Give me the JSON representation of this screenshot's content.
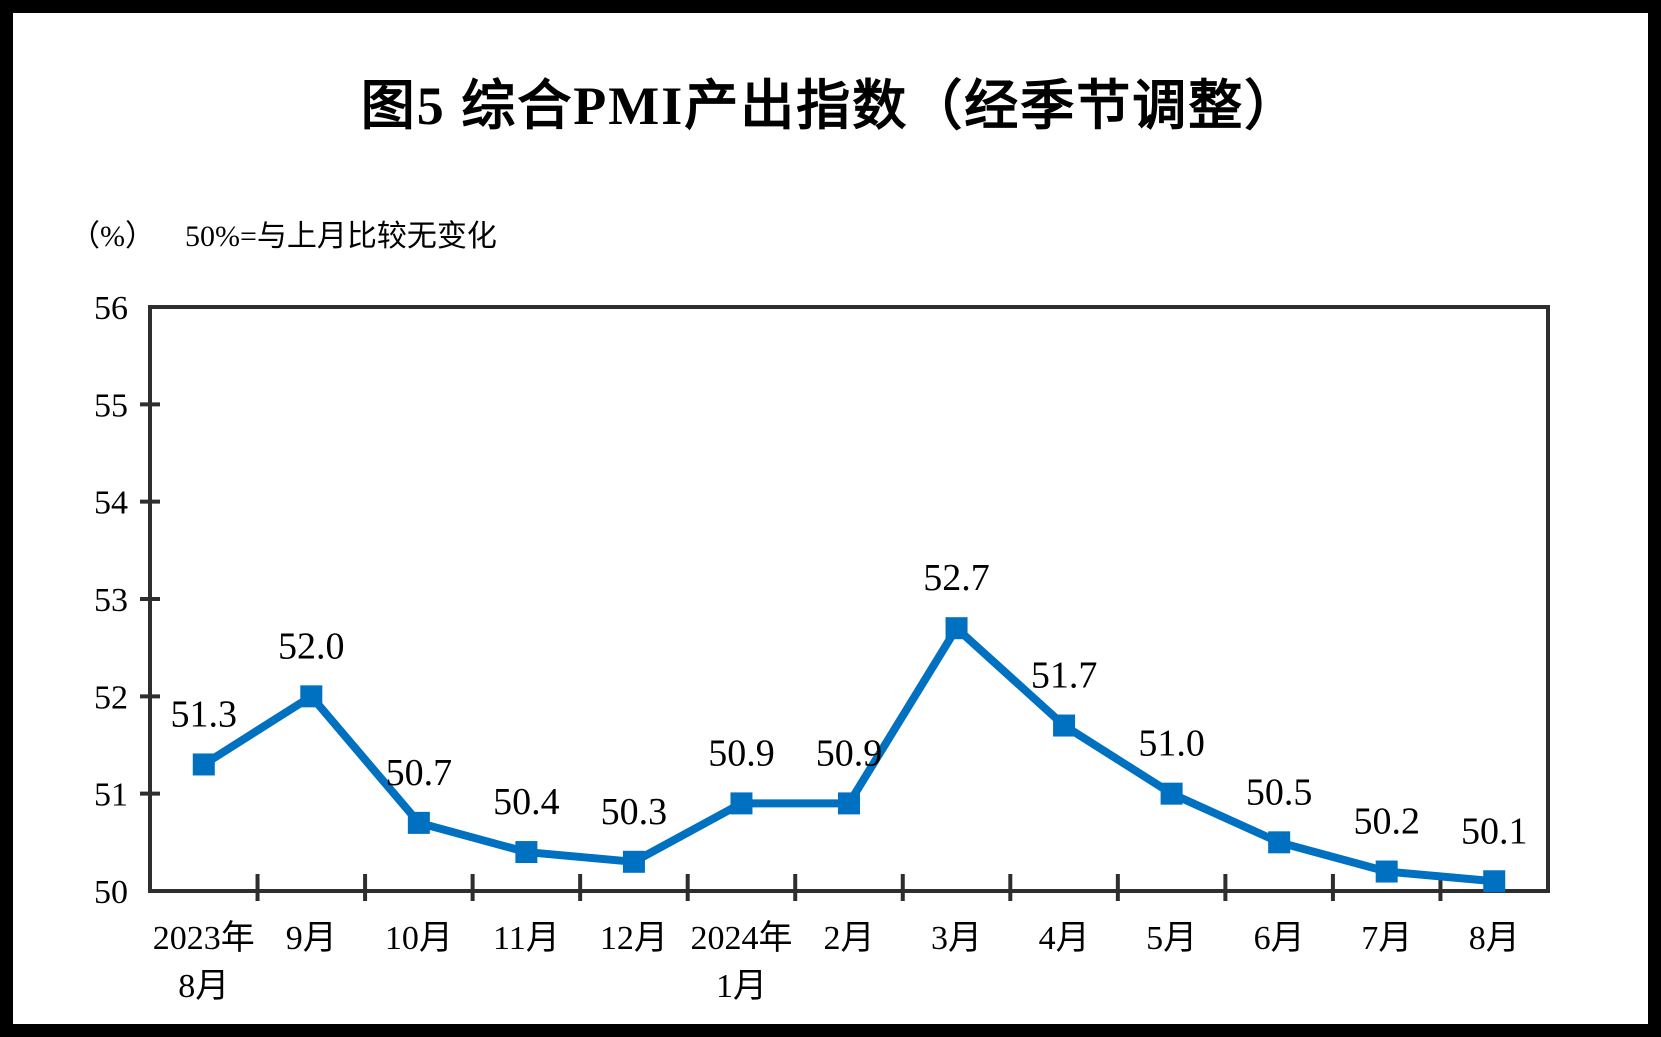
{
  "title": "图5 综合PMI产出指数（经季节调整）",
  "axis_note": {
    "unit": "（%）",
    "note": "50%=与上月比较无变化"
  },
  "chart_data": {
    "type": "line",
    "title": "图5 综合PMI产出指数（经季节调整）",
    "subtitle": "（%） 50%=与上月比较无变化",
    "categories_line1": [
      "2023年",
      "9月",
      "10月",
      "11月",
      "12月",
      "2024年",
      "2月",
      "3月",
      "4月",
      "5月",
      "6月",
      "7月",
      "8月"
    ],
    "categories_line2": [
      "8月",
      "",
      "",
      "",
      "",
      "1月",
      "",
      "",
      "",
      "",
      "",
      "",
      ""
    ],
    "values": [
      51.3,
      52.0,
      50.7,
      50.4,
      50.3,
      50.9,
      50.9,
      52.7,
      51.7,
      51.0,
      50.5,
      50.2,
      50.1
    ],
    "data_labels": [
      "51.3",
      "52.0",
      "50.7",
      "50.4",
      "50.3",
      "50.9",
      "50.9",
      "52.7",
      "51.7",
      "51.0",
      "50.5",
      "50.2",
      "50.1"
    ],
    "yticks": [
      50,
      51,
      52,
      53,
      54,
      55,
      56
    ],
    "ylim": [
      50,
      56
    ],
    "grid": false,
    "legend_position": "none",
    "marker": "square",
    "colors": {
      "series": "#0070C0",
      "axis": "#2E2E2E",
      "text": "#000000",
      "background": "#FFFFFF",
      "frame": "#000000"
    }
  }
}
